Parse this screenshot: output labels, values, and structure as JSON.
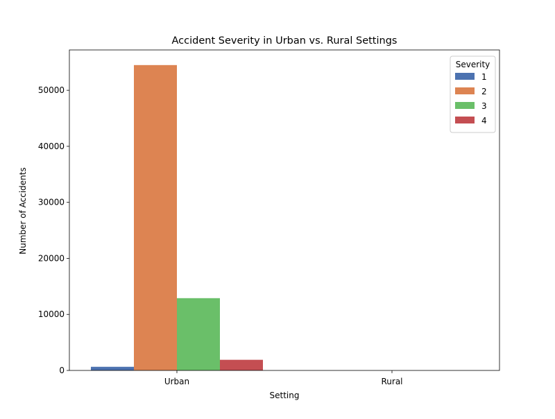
{
  "chart_data": {
    "type": "bar",
    "title": "Accident Severity in Urban vs. Rural Settings",
    "xlabel": "Setting",
    "ylabel": "Number of Accidents",
    "categories": [
      "Urban",
      "Rural"
    ],
    "ylim": [
      0,
      57200
    ],
    "yticks": [
      0,
      10000,
      20000,
      30000,
      40000,
      50000
    ],
    "legend_title": "Severity",
    "legend_position": "top-right",
    "grid": false,
    "series": [
      {
        "name": "1",
        "color": "#4c72b0",
        "values": [
          650,
          0
        ]
      },
      {
        "name": "2",
        "color": "#dd8452",
        "values": [
          54500,
          0
        ]
      },
      {
        "name": "3",
        "color": "#6abf69",
        "values": [
          12900,
          0
        ]
      },
      {
        "name": "4",
        "color": "#c44e52",
        "values": [
          1900,
          0
        ]
      }
    ]
  }
}
